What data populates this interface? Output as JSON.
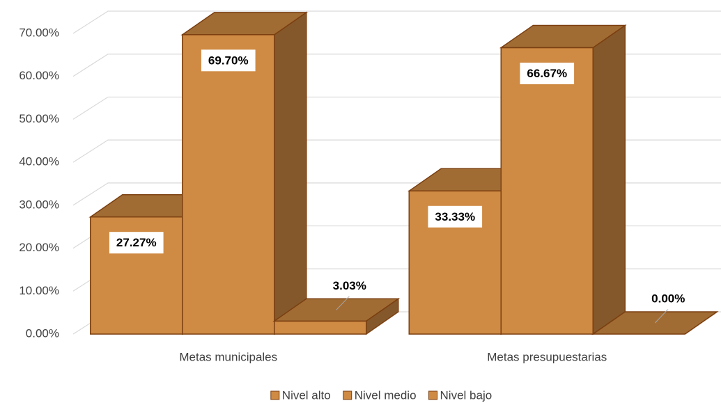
{
  "chart_data": {
    "type": "bar3d",
    "categories": [
      "Metas municipales",
      "Metas presupuestarias"
    ],
    "series": [
      {
        "name": "Nivel alto",
        "color": "#CF8A43",
        "values": [
          27.27,
          33.33
        ],
        "value_labels": [
          "27.27%",
          "33.33%"
        ]
      },
      {
        "name": "Nivel medio",
        "color": "#CF8A43",
        "values": [
          69.7,
          66.67
        ],
        "value_labels": [
          "69.70%",
          "66.67%"
        ]
      },
      {
        "name": "Nivel bajo",
        "color": "#CF8A43",
        "values": [
          3.03,
          0.0
        ],
        "value_labels": [
          "3.03%",
          "0.00%"
        ]
      }
    ],
    "ylim": [
      0,
      70
    ],
    "yticks": [
      {
        "value": 0,
        "label": "0.00%"
      },
      {
        "value": 10,
        "label": "10.00%"
      },
      {
        "value": 20,
        "label": "20.00%"
      },
      {
        "value": 30,
        "label": "30.00%"
      },
      {
        "value": 40,
        "label": "40.00%"
      },
      {
        "value": 50,
        "label": "50.00%"
      },
      {
        "value": 60,
        "label": "60.00%"
      },
      {
        "value": 70,
        "label": "70.00%"
      }
    ],
    "grid": true,
    "legend": "bottom"
  }
}
